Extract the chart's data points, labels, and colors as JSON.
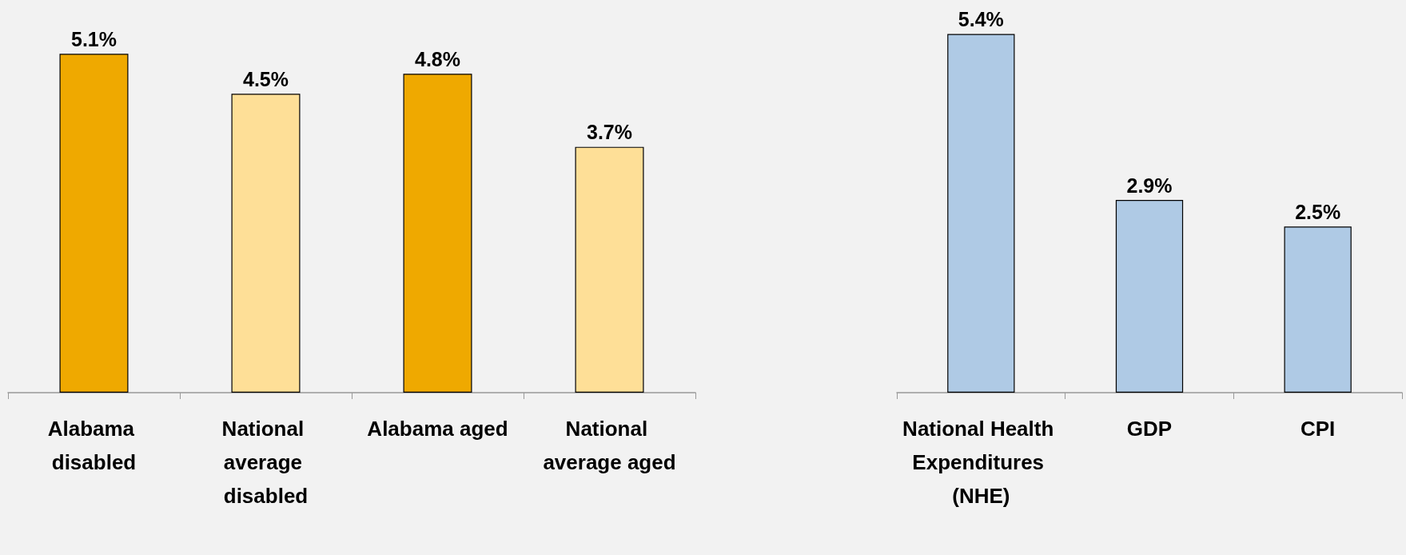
{
  "chart_data": [
    {
      "type": "bar",
      "categories": [
        "Alabama disabled",
        "National average disabled",
        "Alabama aged",
        "National average aged"
      ],
      "values": [
        5.1,
        4.5,
        4.8,
        3.7
      ],
      "colors": [
        "#efa900",
        "#fedf97",
        "#efa900",
        "#fedf97"
      ],
      "value_labels": [
        "5.1%",
        "4.5%",
        "4.8%",
        "3.7%"
      ]
    },
    {
      "type": "bar",
      "categories": [
        "National Health Expenditures (NHE)",
        "GDP",
        "CPI"
      ],
      "values": [
        5.4,
        2.9,
        2.5
      ],
      "colors": [
        "#afcae5",
        "#afcae5",
        "#afcae5"
      ],
      "value_labels": [
        "5.4%",
        "2.9%",
        "2.5%"
      ]
    }
  ]
}
